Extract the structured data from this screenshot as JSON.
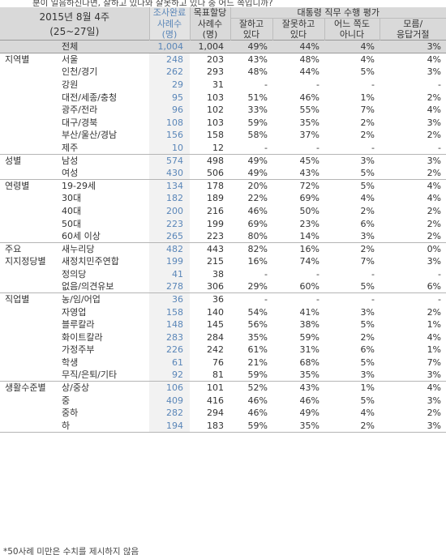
{
  "caption": "분이 일음하신다면, 잘하고 있다와 잘못하고 있다 중 어느 쪽입니까?",
  "header": {
    "date": "2015년 8월 4주",
    "date_range": "(25~27일)",
    "survey_col_top": "조사완료",
    "survey_col_mid": "사례수",
    "survey_col_unit": "(명)",
    "target_col_top": "목표할당",
    "target_col_mid": "사례수",
    "target_col_unit": "(명)",
    "eval_group": "대통령 직무 수행 평가",
    "eval_cols": [
      {
        "line1": "잘하고",
        "line2": "있다"
      },
      {
        "line1": "잘못하고",
        "line2": "있다"
      },
      {
        "line1": "어느 쪽도",
        "line2": "아니다"
      },
      {
        "line1": "모름/",
        "line2": "응답거절"
      }
    ]
  },
  "rows": [
    {
      "cat": "",
      "sub": "전체",
      "n1": "1,004",
      "n2": "1,004",
      "p": [
        "49%",
        "44%",
        "4%",
        "3%"
      ],
      "total": true
    },
    {
      "cat": "지역별",
      "sub": "서울",
      "n1": "248",
      "n2": "203",
      "p": [
        "43%",
        "48%",
        "4%",
        "4%"
      ],
      "start": true
    },
    {
      "cat": "",
      "sub": "인천/경기",
      "n1": "262",
      "n2": "293",
      "p": [
        "48%",
        "44%",
        "5%",
        "3%"
      ]
    },
    {
      "cat": "",
      "sub": "강원",
      "n1": "29",
      "n2": "31",
      "p": [
        "-",
        "-",
        "-",
        "-"
      ]
    },
    {
      "cat": "",
      "sub": "대전/세종/충청",
      "n1": "95",
      "n2": "103",
      "p": [
        "51%",
        "46%",
        "1%",
        "2%"
      ]
    },
    {
      "cat": "",
      "sub": "광주/전라",
      "n1": "96",
      "n2": "102",
      "p": [
        "33%",
        "55%",
        "7%",
        "4%"
      ]
    },
    {
      "cat": "",
      "sub": "대구/경북",
      "n1": "108",
      "n2": "103",
      "p": [
        "59%",
        "35%",
        "2%",
        "3%"
      ]
    },
    {
      "cat": "",
      "sub": "부산/울산/경남",
      "n1": "156",
      "n2": "158",
      "p": [
        "58%",
        "37%",
        "2%",
        "2%"
      ]
    },
    {
      "cat": "",
      "sub": "제주",
      "n1": "10",
      "n2": "12",
      "p": [
        "-",
        "-",
        "-",
        "-"
      ]
    },
    {
      "cat": "성별",
      "sub": "남성",
      "n1": "574",
      "n2": "498",
      "p": [
        "49%",
        "45%",
        "3%",
        "3%"
      ],
      "start": true
    },
    {
      "cat": "",
      "sub": "여성",
      "n1": "430",
      "n2": "506",
      "p": [
        "49%",
        "43%",
        "5%",
        "2%"
      ]
    },
    {
      "cat": "연령별",
      "sub": "19-29세",
      "n1": "134",
      "n2": "178",
      "p": [
        "20%",
        "72%",
        "5%",
        "4%"
      ],
      "start": true
    },
    {
      "cat": "",
      "sub": "30대",
      "n1": "182",
      "n2": "189",
      "p": [
        "22%",
        "69%",
        "4%",
        "4%"
      ]
    },
    {
      "cat": "",
      "sub": "40대",
      "n1": "200",
      "n2": "216",
      "p": [
        "46%",
        "50%",
        "2%",
        "2%"
      ]
    },
    {
      "cat": "",
      "sub": "50대",
      "n1": "223",
      "n2": "199",
      "p": [
        "69%",
        "23%",
        "6%",
        "2%"
      ]
    },
    {
      "cat": "",
      "sub": "60세 이상",
      "n1": "265",
      "n2": "223",
      "p": [
        "80%",
        "14%",
        "3%",
        "2%"
      ]
    },
    {
      "cat": "주요",
      "sub": "새누리당",
      "n1": "482",
      "n2": "443",
      "p": [
        "82%",
        "16%",
        "2%",
        "0%"
      ],
      "start": true
    },
    {
      "cat": "지지정당별",
      "sub": "새정치민주연합",
      "n1": "199",
      "n2": "215",
      "p": [
        "16%",
        "74%",
        "7%",
        "3%"
      ]
    },
    {
      "cat": "",
      "sub": "정의당",
      "n1": "41",
      "n2": "38",
      "p": [
        "-",
        "-",
        "-",
        "-"
      ]
    },
    {
      "cat": "",
      "sub": "없음/의견유보",
      "n1": "278",
      "n2": "306",
      "p": [
        "29%",
        "60%",
        "5%",
        "6%"
      ]
    },
    {
      "cat": "직업별",
      "sub": "농/임/어업",
      "n1": "36",
      "n2": "36",
      "p": [
        "-",
        "-",
        "-",
        "-"
      ],
      "start": true
    },
    {
      "cat": "",
      "sub": "자영업",
      "n1": "158",
      "n2": "140",
      "p": [
        "54%",
        "41%",
        "3%",
        "2%"
      ]
    },
    {
      "cat": "",
      "sub": "블루칼라",
      "n1": "148",
      "n2": "145",
      "p": [
        "56%",
        "38%",
        "5%",
        "1%"
      ]
    },
    {
      "cat": "",
      "sub": "화이트칼라",
      "n1": "283",
      "n2": "284",
      "p": [
        "35%",
        "59%",
        "2%",
        "4%"
      ]
    },
    {
      "cat": "",
      "sub": "가정주부",
      "n1": "226",
      "n2": "242",
      "p": [
        "61%",
        "31%",
        "6%",
        "1%"
      ]
    },
    {
      "cat": "",
      "sub": "학생",
      "n1": "61",
      "n2": "76",
      "p": [
        "21%",
        "68%",
        "5%",
        "7%"
      ]
    },
    {
      "cat": "",
      "sub": "무직/은퇴/기타",
      "n1": "92",
      "n2": "81",
      "p": [
        "59%",
        "35%",
        "3%",
        "3%"
      ]
    },
    {
      "cat": "생활수준별",
      "sub": "상/중상",
      "n1": "106",
      "n2": "101",
      "p": [
        "52%",
        "43%",
        "1%",
        "4%"
      ],
      "start": true
    },
    {
      "cat": "",
      "sub": "중",
      "n1": "409",
      "n2": "416",
      "p": [
        "46%",
        "46%",
        "5%",
        "3%"
      ]
    },
    {
      "cat": "",
      "sub": "중하",
      "n1": "282",
      "n2": "294",
      "p": [
        "46%",
        "49%",
        "4%",
        "2%"
      ]
    },
    {
      "cat": "",
      "sub": "하",
      "n1": "194",
      "n2": "183",
      "p": [
        "59%",
        "35%",
        "2%",
        "3%"
      ]
    }
  ],
  "footnote": "*50사례 미만은 수치를 제시하지 않음"
}
